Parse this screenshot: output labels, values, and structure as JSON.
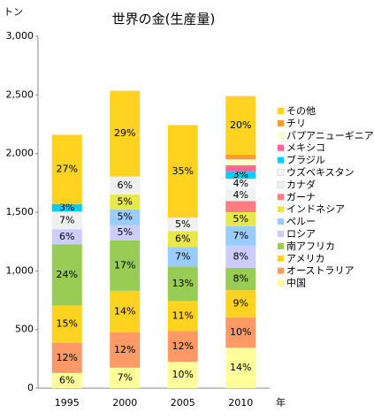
{
  "chart_data": {
    "type": "stacked_bar",
    "title": "世界の金(生産量)",
    "y_label": "トン",
    "x_label": "年",
    "categories": [
      "1995",
      "2000",
      "2005",
      "2010"
    ],
    "ylim": [
      0,
      3000
    ],
    "yticks": [
      0,
      {
        "value": 500,
        "label": "500"
      },
      {
        "value": 1000,
        "label": "1,000"
      },
      {
        "value": 1500,
        "label": "1,500"
      },
      {
        "value": 2000,
        "label": "2,000"
      },
      {
        "value": 2500,
        "label": "2,500"
      },
      {
        "value": 3000,
        "label": "3,000"
      }
    ],
    "grid": false,
    "legend": "right",
    "series": [
      {
        "name": "中国",
        "color": "#ffff99",
        "values": [
          130,
          175,
          225,
          345
        ],
        "value_labels": [
          "6%",
          "7%",
          "10%",
          "14%"
        ]
      },
      {
        "name": "オーストラリア",
        "color": "#ff9966",
        "values": [
          255,
          300,
          262,
          260
        ],
        "value_labels": [
          "12%",
          "12%",
          "12%",
          "10%"
        ]
      },
      {
        "name": "アメリカ",
        "color": "#ffd320",
        "values": [
          320,
          355,
          256,
          230
        ],
        "value_labels": [
          "15%",
          "14%",
          "11%",
          "9%"
        ]
      },
      {
        "name": "南アフリカ",
        "color": "#99cc55",
        "values": [
          520,
          430,
          295,
          190
        ],
        "value_labels": [
          "24%",
          "17%",
          "13%",
          "8%"
        ]
      },
      {
        "name": "ロシア",
        "color": "#ccccff",
        "values": [
          130,
          130,
          0,
          190
        ],
        "value_labels": [
          "6%",
          "5%",
          null,
          "8%"
        ]
      },
      {
        "name": "ペルー",
        "color": "#99ccff",
        "values": [
          0,
          135,
          165,
          165
        ],
        "value_labels": [
          null,
          "5%",
          "7%",
          "7%"
        ]
      },
      {
        "name": "インドネシア",
        "color": "#e8e84c",
        "values": [
          0,
          125,
          135,
          120
        ],
        "value_labels": [
          null,
          "5%",
          "6%",
          "5%"
        ]
      },
      {
        "name": "ガーナ",
        "color": "#ff7c80",
        "values": [
          0,
          0,
          0,
          95
        ],
        "value_labels": [
          null,
          null,
          null,
          null
        ]
      },
      {
        "name": "カナダ",
        "color": "#f0f0f0",
        "values": [
          150,
          155,
          115,
          100
        ],
        "value_labels": [
          "7%",
          "6%",
          "5%",
          "4%"
        ]
      },
      {
        "name": "ウズベキスタン",
        "color": "#f6f6ff",
        "values": [
          0,
          0,
          0,
          90
        ],
        "value_labels": [
          null,
          null,
          null,
          "4%"
        ]
      },
      {
        "name": "ブラジル",
        "color": "#00ccff",
        "values": [
          65,
          0,
          0,
          60
        ],
        "value_labels": [
          "3%",
          null,
          null,
          "3%"
        ]
      },
      {
        "name": "メキシコ",
        "color": "#ff6699",
        "values": [
          0,
          0,
          0,
          55
        ],
        "value_labels": [
          null,
          null,
          null,
          null
        ]
      },
      {
        "name": "パプアニューギニア",
        "color": "#ffffcc",
        "values": [
          0,
          0,
          0,
          50
        ],
        "value_labels": [
          null,
          null,
          null,
          null
        ]
      },
      {
        "name": "チリ",
        "color": "#ff9933",
        "values": [
          0,
          0,
          0,
          40
        ],
        "value_labels": [
          null,
          null,
          null,
          null
        ]
      },
      {
        "name": "その他",
        "color": "#ffd320",
        "values": [
          590,
          730,
          790,
          500
        ],
        "value_labels": [
          "27%",
          "29%",
          "35%",
          "20%"
        ]
      }
    ]
  }
}
